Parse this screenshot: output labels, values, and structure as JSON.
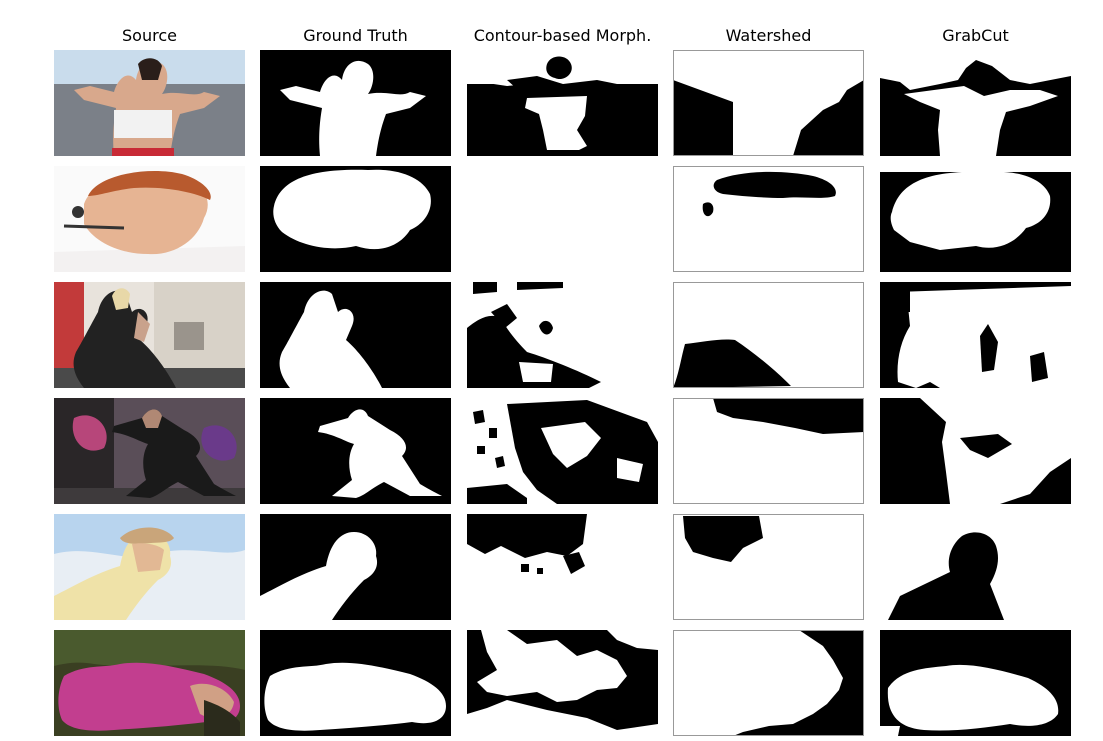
{
  "columns": [
    "Source",
    "Ground Truth",
    "Contour-based Morph.",
    "Watershed",
    "GrabCut"
  ],
  "rows": [
    {
      "subject": "woman lying with arms raised, white top, red bottoms",
      "source_colors": {
        "sky": "#c9dcec",
        "ground": "#7b8088",
        "skin": "#d8a88c",
        "top": "#f2f2f2",
        "accent": "#c82a36"
      }
    },
    {
      "subject": "smiling person with headset",
      "source_colors": {
        "sky": "#fafafa",
        "ground": "#f3f1f1",
        "skin": "#e6b493",
        "hair": "#b85a2e",
        "accent": "#333333"
      }
    },
    {
      "subject": "tattooed woman in sunglasses on street",
      "source_colors": {
        "sky": "#e8e3dc",
        "ground": "#4a4a4a",
        "skin": "#c9a28c",
        "top": "#222222",
        "accent": "#c23a3a"
      }
    },
    {
      "subject": "woman posing in front of graffiti wall",
      "source_colors": {
        "sky": "#5a4e58",
        "ground": "#3e3a3c",
        "skin": "#b08874",
        "top": "#1a1a1a",
        "accent": "#b7467a"
      }
    },
    {
      "subject": "woman in sun hat against sky",
      "source_colors": {
        "sky": "#b8d4ee",
        "ground": "#f0ead6",
        "skin": "#e2b894",
        "top": "#efe2a8",
        "accent": "#c9a57a"
      }
    },
    {
      "subject": "girl lying on grass in pink top",
      "source_colors": {
        "sky": "#4a5a2e",
        "ground": "#3a3f22",
        "skin": "#d0a085",
        "top": "#c23e8f",
        "accent": "#2b2b1c"
      }
    }
  ]
}
